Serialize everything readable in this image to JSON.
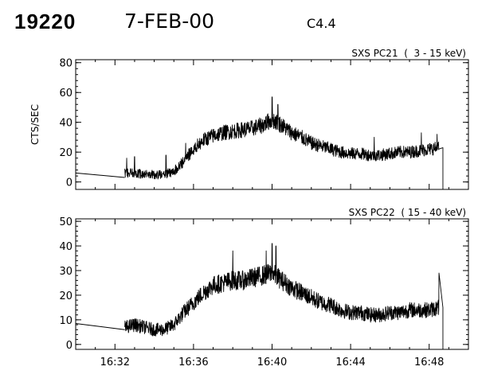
{
  "header": {
    "event_id": "19220",
    "date": "7-FEB-00",
    "goes_class": "C4.4"
  },
  "colors": {
    "trace": "#000000",
    "axes": "#000000",
    "background": "#ffffff"
  },
  "chart_data": [
    {
      "type": "line",
      "title": "SXS PC21  (  3 - 15 keV)",
      "xlabel": "",
      "ylabel": "CTS/SEC",
      "xlim": [
        "16:30",
        "16:50"
      ],
      "ylim": [
        -5,
        82
      ],
      "yticks": [
        0,
        20,
        40,
        60,
        80
      ],
      "xticks": [
        "16:32",
        "16:36",
        "16:40",
        "16:44",
        "16:48"
      ],
      "show_xtick_labels": false,
      "grid": false,
      "interpolated_gap": {
        "from": [
          "16:30",
          6
        ],
        "to": [
          "16:32.5",
          3
        ]
      },
      "noise_amplitude": 4.5,
      "spikes": [
        [
          "16:32.6",
          16
        ],
        [
          "16:33.0",
          17
        ],
        [
          "16:34.6",
          18
        ],
        [
          "16:35.6",
          26
        ],
        [
          "16:40.0",
          57
        ],
        [
          "16:40.3",
          52
        ],
        [
          "16:45.2",
          30
        ],
        [
          "16:47.6",
          33
        ],
        [
          "16:48.4",
          32
        ]
      ],
      "series": [
        {
          "name": "",
          "x": [
            "16:32.5",
            "16:33.0",
            "16:33.5",
            "16:34.0",
            "16:34.5",
            "16:35.0",
            "16:35.5",
            "16:36.0",
            "16:36.5",
            "16:37.0",
            "16:37.5",
            "16:38.0",
            "16:38.5",
            "16:39.0",
            "16:39.5",
            "16:40.0",
            "16:40.5",
            "16:41.0",
            "16:41.5",
            "16:42.0",
            "16:42.5",
            "16:43.0",
            "16:43.5",
            "16:44.0",
            "16:44.5",
            "16:45.0",
            "16:45.5",
            "16:46.0",
            "16:46.5",
            "16:47.0",
            "16:47.5",
            "16:48.0",
            "16:48.5",
            "16:48.7"
          ],
          "values": [
            6,
            6,
            5,
            5,
            5,
            7,
            14,
            22,
            28,
            31,
            33,
            34,
            35,
            36,
            38,
            42,
            38,
            33,
            30,
            26,
            24,
            22,
            20,
            19,
            19,
            18,
            18,
            19,
            20,
            20,
            21,
            22,
            23,
            0
          ]
        }
      ]
    },
    {
      "type": "line",
      "title": "SXS PC22  ( 15 - 40 keV)",
      "xlabel": "",
      "ylabel": "",
      "xlim": [
        "16:30",
        "16:50"
      ],
      "ylim": [
        -2,
        51
      ],
      "yticks": [
        0,
        10,
        20,
        30,
        40,
        50
      ],
      "xticks": [
        "16:32",
        "16:36",
        "16:40",
        "16:44",
        "16:48"
      ],
      "show_xtick_labels": true,
      "grid": false,
      "interpolated_gap": {
        "from": [
          "16:30",
          8.5
        ],
        "to": [
          "16:32.5",
          6
        ]
      },
      "noise_amplitude": 3.8,
      "spikes": [
        [
          "16:38.0",
          38
        ],
        [
          "16:40.0",
          41
        ],
        [
          "16:40.2",
          40
        ],
        [
          "16:39.7",
          38
        ],
        [
          "16:48.5",
          29
        ]
      ],
      "series": [
        {
          "name": "",
          "x": [
            "16:32.5",
            "16:33.0",
            "16:33.5",
            "16:34.0",
            "16:34.5",
            "16:35.0",
            "16:35.5",
            "16:36.0",
            "16:36.5",
            "16:37.0",
            "16:37.5",
            "16:38.0",
            "16:38.5",
            "16:39.0",
            "16:39.5",
            "16:40.0",
            "16:40.5",
            "16:41.0",
            "16:41.5",
            "16:42.0",
            "16:42.5",
            "16:43.0",
            "16:43.5",
            "16:44.0",
            "16:44.5",
            "16:45.0",
            "16:45.5",
            "16:46.0",
            "16:46.5",
            "16:47.0",
            "16:47.5",
            "16:48.0",
            "16:48.5",
            "16:48.7"
          ],
          "values": [
            7,
            8,
            7,
            6,
            6,
            8,
            13,
            17,
            21,
            24,
            25,
            26,
            26,
            27,
            28,
            29,
            26,
            23,
            21,
            19,
            17,
            16,
            14,
            13,
            13,
            12,
            12,
            13,
            13,
            14,
            14,
            14,
            15,
            0
          ]
        }
      ]
    }
  ]
}
